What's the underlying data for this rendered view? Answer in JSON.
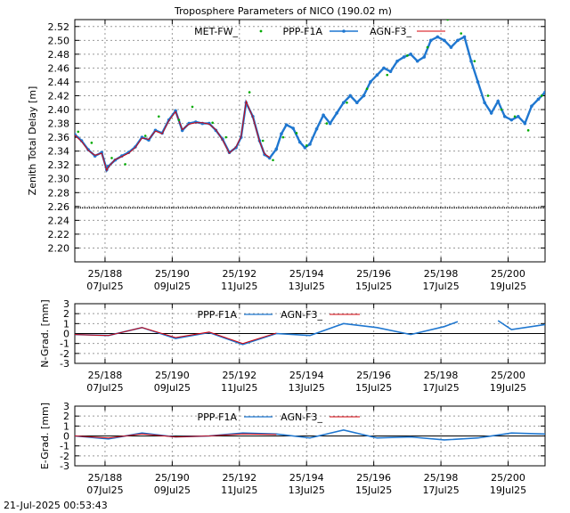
{
  "title": "Troposphere Parameters of NICO (190.02 m)",
  "timestamp": "21-Jul-2025 00:53:43",
  "colors": {
    "met": "#00aa00",
    "ppp": "#1f77d0",
    "agn": "#d4000a",
    "zero": "#000000",
    "grid": "#999999"
  },
  "x_ticks": [
    {
      "doy": "25/188",
      "date": "07Jul25",
      "v": 188
    },
    {
      "doy": "25/190",
      "date": "09Jul25",
      "v": 190
    },
    {
      "doy": "25/192",
      "date": "11Jul25",
      "v": 192
    },
    {
      "doy": "25/194",
      "date": "13Jul25",
      "v": 194
    },
    {
      "doy": "25/196",
      "date": "15Jul25",
      "v": 196
    },
    {
      "doy": "25/198",
      "date": "17Jul25",
      "v": 198
    },
    {
      "doy": "25/200",
      "date": "19Jul25",
      "v": 200
    }
  ],
  "chart_data": [
    {
      "type": "scatter",
      "title": "Troposphere Parameters of NICO (190.02 m)",
      "ylabel": "Zenith Total Delay [m]",
      "xlim": [
        187.1,
        201.1
      ],
      "ylim": [
        2.18,
        2.53
      ],
      "yticks": [
        "2.20",
        "2.22",
        "2.24",
        "2.26",
        "2.28",
        "2.30",
        "2.32",
        "2.34",
        "2.36",
        "2.38",
        "2.40",
        "2.42",
        "2.44",
        "2.46",
        "2.48",
        "2.50",
        "2.52"
      ],
      "legend": [
        "MET-FW_",
        "PPP-F1A",
        "AGN-F3_"
      ],
      "met_baseline": 2.258,
      "series": [
        {
          "name": "PPP-F1A",
          "x": [
            187.1,
            187.3,
            187.5,
            187.7,
            187.9,
            188.05,
            188.1,
            188.3,
            188.5,
            188.7,
            188.9,
            189.1,
            189.3,
            189.5,
            189.7,
            189.9,
            190.1,
            190.3,
            190.5,
            190.7,
            190.9,
            191.1,
            191.3,
            191.5,
            191.7,
            191.9,
            192.05,
            192.2,
            192.4,
            192.6,
            192.75,
            192.9,
            193.1,
            193.25,
            193.4,
            193.6,
            193.8,
            193.95,
            194.1,
            194.3,
            194.5,
            194.7,
            194.9,
            195.1,
            195.3,
            195.5,
            195.7,
            195.9,
            196.1,
            196.3,
            196.5,
            196.7,
            196.9,
            197.1,
            197.3,
            197.5,
            197.7,
            197.9,
            198.1,
            198.3,
            198.5,
            198.7,
            198.9,
            199.1,
            199.3,
            199.5,
            199.7,
            199.9,
            200.1,
            200.3,
            200.5,
            200.7,
            200.9,
            201.1
          ],
          "values": [
            2.364,
            2.355,
            2.342,
            2.333,
            2.338,
            2.313,
            2.318,
            2.327,
            2.333,
            2.338,
            2.346,
            2.36,
            2.356,
            2.37,
            2.366,
            2.385,
            2.398,
            2.37,
            2.38,
            2.382,
            2.38,
            2.38,
            2.37,
            2.357,
            2.338,
            2.345,
            2.36,
            2.41,
            2.39,
            2.355,
            2.335,
            2.33,
            2.343,
            2.365,
            2.378,
            2.373,
            2.353,
            2.345,
            2.35,
            2.372,
            2.392,
            2.38,
            2.395,
            2.41,
            2.42,
            2.41,
            2.42,
            2.44,
            2.45,
            2.46,
            2.455,
            2.47,
            2.476,
            2.48,
            2.47,
            2.476,
            2.5,
            2.505,
            2.5,
            2.49,
            2.5,
            2.505,
            2.47,
            2.44,
            2.41,
            2.395,
            2.412,
            2.39,
            2.385,
            2.39,
            2.38,
            2.405,
            2.415,
            2.425
          ]
        },
        {
          "name": "AGN-F3_",
          "x": [
            187.1,
            187.3,
            187.5,
            187.7,
            187.9,
            188.05,
            188.1,
            188.3,
            188.5,
            188.7,
            188.9,
            189.1,
            189.3,
            189.5,
            189.7,
            189.9,
            190.1,
            190.3,
            190.5,
            190.7,
            190.9,
            191.1,
            191.3,
            191.5,
            191.7,
            191.9,
            192.05,
            192.2,
            192.4,
            192.6,
            192.75,
            192.9
          ],
          "values": [
            2.363,
            2.354,
            2.341,
            2.334,
            2.337,
            2.312,
            2.317,
            2.328,
            2.332,
            2.337,
            2.345,
            2.359,
            2.357,
            2.369,
            2.365,
            2.384,
            2.397,
            2.371,
            2.379,
            2.381,
            2.381,
            2.379,
            2.371,
            2.356,
            2.337,
            2.346,
            2.361,
            2.412,
            2.389,
            2.354,
            2.336,
            2.331
          ]
        },
        {
          "name": "MET-FW_",
          "x": [
            187.2,
            187.6,
            188.2,
            188.6,
            189.2,
            189.6,
            190.2,
            190.6,
            191.2,
            191.6,
            192.3,
            192.7,
            193.0,
            193.3,
            193.7,
            194.0,
            194.6,
            195.2,
            195.8,
            196.4,
            197.0,
            197.6,
            198.2,
            198.6,
            199.0,
            199.4,
            199.8,
            200.2,
            200.6,
            201.0
          ],
          "values": [
            2.368,
            2.352,
            2.33,
            2.321,
            2.362,
            2.39,
            2.385,
            2.404,
            2.381,
            2.36,
            2.425,
            2.355,
            2.327,
            2.36,
            2.366,
            2.348,
            2.38,
            2.41,
            2.43,
            2.45,
            2.478,
            2.49,
            2.53,
            2.51,
            2.47,
            2.42,
            2.4,
            2.39,
            2.37,
            2.42
          ]
        }
      ]
    },
    {
      "type": "line",
      "ylabel": "N-Grad. [mm]",
      "xlim": [
        187.1,
        201.1
      ],
      "ylim": [
        -3,
        3
      ],
      "yticks": [
        "-3",
        "-2",
        "-1",
        "0",
        "1",
        "2",
        "3"
      ],
      "legend": [
        "PPP-F1A",
        "AGN-F3_"
      ],
      "series": [
        {
          "name": "PPP-F1A",
          "x": [
            187.1,
            188.1,
            189.1,
            190.1,
            191.1,
            192.1,
            193.1,
            194.1,
            195.1,
            196.1,
            197.1,
            198.1,
            198.5
          ],
          "values": [
            -0.1,
            -0.2,
            0.6,
            -0.5,
            0.1,
            -1.1,
            0.0,
            -0.2,
            1.0,
            0.6,
            -0.1,
            0.7,
            1.2
          ]
        },
        {
          "name": "AGN-F3_",
          "x": [
            187.1,
            188.1,
            189.1,
            190.1,
            191.1,
            192.1,
            193.1
          ],
          "values": [
            -0.1,
            -0.2,
            0.6,
            -0.4,
            0.15,
            -1.0,
            0.05
          ]
        },
        {
          "name": "PPP-F1A",
          "x": [
            199.7,
            200.1,
            201.1
          ],
          "values": [
            1.3,
            0.4,
            0.9
          ]
        }
      ]
    },
    {
      "type": "line",
      "ylabel": "E-Grad. [mm]",
      "xlim": [
        187.1,
        201.1
      ],
      "ylim": [
        -3,
        3
      ],
      "yticks": [
        "-3",
        "-2",
        "-1",
        "0",
        "1",
        "2",
        "3"
      ],
      "legend": [
        "PPP-F1A",
        "AGN-F3_"
      ],
      "series": [
        {
          "name": "PPP-F1A",
          "x": [
            187.1,
            188.1,
            189.1,
            190.1,
            191.1,
            192.1,
            193.1,
            194.1,
            195.1,
            196.1,
            197.1,
            198.1,
            199.1,
            200.1,
            201.1
          ],
          "values": [
            0.0,
            -0.3,
            0.3,
            -0.1,
            0.0,
            0.3,
            0.2,
            -0.2,
            0.6,
            -0.2,
            -0.1,
            -0.4,
            -0.2,
            0.3,
            0.2
          ]
        },
        {
          "name": "AGN-F3_",
          "x": [
            187.1,
            188.1,
            189.1,
            190.1,
            191.1,
            192.1,
            193.1
          ],
          "values": [
            0.0,
            -0.2,
            0.2,
            -0.1,
            0.0,
            0.2,
            0.15
          ]
        }
      ]
    }
  ]
}
